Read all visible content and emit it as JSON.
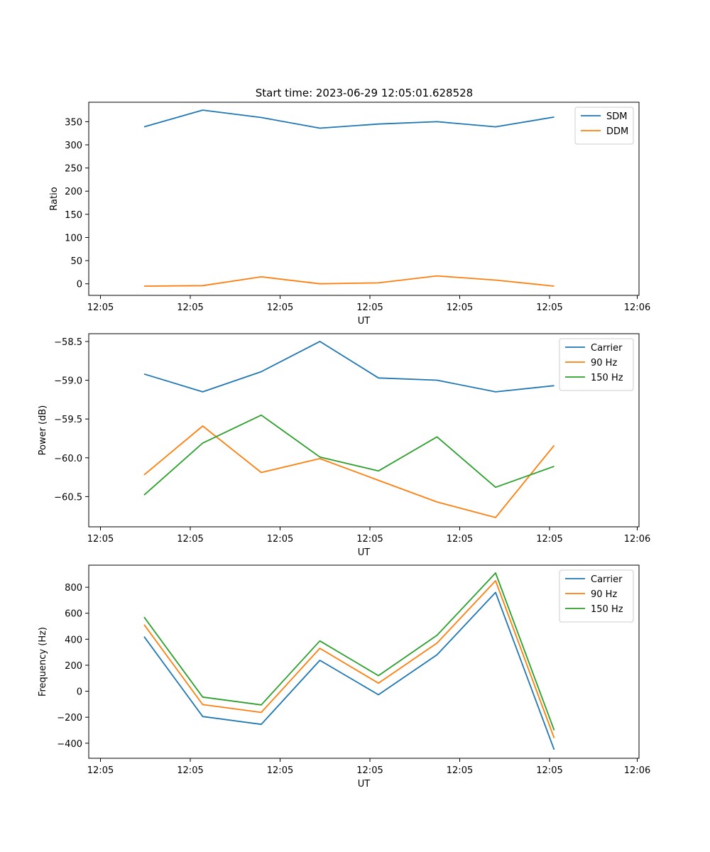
{
  "title": "Start time: 2023-06-29 12:05:01.628528",
  "chart_data": [
    {
      "type": "line",
      "title": "",
      "xlabel": "UT",
      "ylabel": "Ratio",
      "x_tick_labels": [
        "12:05",
        "12:05",
        "12:05",
        "12:05",
        "12:05",
        "12:05",
        "12:06"
      ],
      "y_ticks": [
        0,
        50,
        100,
        150,
        200,
        250,
        300,
        350
      ],
      "ylim": [
        -25,
        392
      ],
      "grid": false,
      "legend_position": "top-right",
      "series": [
        {
          "name": "SDM",
          "color": "#1f77b4",
          "values": [
            339,
            375,
            359,
            336,
            345,
            350,
            339,
            360
          ]
        },
        {
          "name": "DDM",
          "color": "#ff7f0e",
          "values": [
            -5,
            -4,
            15,
            0,
            2,
            17,
            8,
            -5
          ]
        }
      ]
    },
    {
      "type": "line",
      "title": "",
      "xlabel": "UT",
      "ylabel": "Power (dB)",
      "x_tick_labels": [
        "12:05",
        "12:05",
        "12:05",
        "12:05",
        "12:05",
        "12:05",
        "12:06"
      ],
      "y_ticks": [
        -58.5,
        -59.0,
        -59.5,
        -60.0,
        -60.5
      ],
      "y_tick_labels": [
        "−58.5",
        "−59.0",
        "−59.5",
        "−60.0",
        "−60.5"
      ],
      "ylim": [
        -60.89,
        -58.4
      ],
      "grid": false,
      "legend_position": "top-right",
      "series": [
        {
          "name": "Carrier",
          "color": "#1f77b4",
          "values": [
            -58.92,
            -59.15,
            -58.89,
            -58.5,
            -58.97,
            -59.0,
            -59.15,
            -59.07
          ]
        },
        {
          "name": "90 Hz",
          "color": "#ff7f0e",
          "values": [
            -60.22,
            -59.59,
            -60.19,
            -60.01,
            -60.29,
            -60.57,
            -60.77,
            -59.84
          ]
        },
        {
          "name": "150 Hz",
          "color": "#2ca02c",
          "values": [
            -60.48,
            -59.81,
            -59.45,
            -59.99,
            -60.17,
            -59.73,
            -60.38,
            -60.11
          ]
        }
      ]
    },
    {
      "type": "line",
      "title": "",
      "xlabel": "UT",
      "ylabel": "Frequency (Hz)",
      "x_tick_labels": [
        "12:05",
        "12:05",
        "12:05",
        "12:05",
        "12:05",
        "12:05",
        "12:06"
      ],
      "y_ticks": [
        -400,
        -200,
        0,
        200,
        400,
        600,
        800
      ],
      "y_tick_labels": [
        "−400",
        "−200",
        "0",
        "200",
        "400",
        "600",
        "800"
      ],
      "ylim": [
        -516,
        970
      ],
      "grid": false,
      "legend_position": "top-right",
      "series": [
        {
          "name": "Carrier",
          "color": "#1f77b4",
          "values": [
            420,
            -195,
            -255,
            238,
            -27,
            280,
            760,
            -450
          ]
        },
        {
          "name": "90 Hz",
          "color": "#ff7f0e",
          "values": [
            512,
            -103,
            -163,
            330,
            62,
            370,
            850,
            -360
          ]
        },
        {
          "name": "150 Hz",
          "color": "#2ca02c",
          "values": [
            570,
            -45,
            -105,
            387,
            120,
            430,
            910,
            -300
          ]
        }
      ]
    }
  ]
}
